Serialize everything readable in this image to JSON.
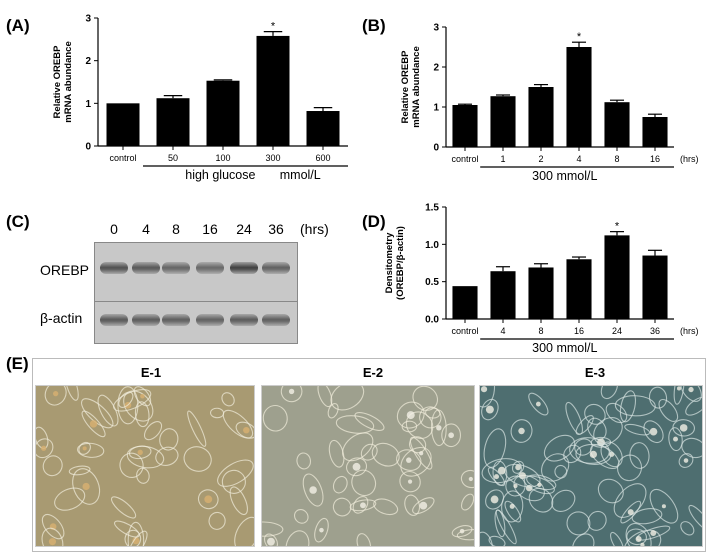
{
  "panels": {
    "A": "(A)",
    "B": "(B)",
    "C": "(C)",
    "D": "(D)",
    "E": "(E)"
  },
  "chart_data": [
    {
      "id": "A",
      "type": "bar",
      "categories": [
        "control",
        "50",
        "100",
        "300",
        "600"
      ],
      "values": [
        1.0,
        1.12,
        1.53,
        2.58,
        0.82
      ],
      "errors": [
        0.0,
        0.06,
        0.02,
        0.1,
        0.08
      ],
      "significant": [
        false,
        false,
        false,
        true,
        false
      ],
      "sig_mark": "*",
      "ylabel_line1": "Relative OREBP",
      "ylabel_line2": "mRNA abundance",
      "ylim": [
        0,
        3
      ],
      "yticks": [
        "0",
        "1",
        "2",
        "3"
      ],
      "group_label": "high glucose       mmol/L",
      "grid": false
    },
    {
      "id": "B",
      "type": "bar",
      "categories": [
        "control",
        "1",
        "2",
        "4",
        "8",
        "16"
      ],
      "values": [
        1.05,
        1.27,
        1.5,
        2.5,
        1.12,
        0.75
      ],
      "errors": [
        0.02,
        0.03,
        0.06,
        0.12,
        0.05,
        0.07
      ],
      "significant": [
        false,
        false,
        false,
        true,
        false,
        false
      ],
      "sig_mark": "*",
      "ylabel_line1": "Relative OREBP",
      "ylabel_line2": "mRNA abundance",
      "ylim": [
        0,
        3
      ],
      "yticks": [
        "0",
        "1",
        "2",
        "3"
      ],
      "unit": "(hrs)",
      "group_label": "300 mmol/L",
      "grid": false
    },
    {
      "id": "D",
      "type": "bar",
      "categories": [
        "control",
        "4",
        "8",
        "16",
        "24",
        "36"
      ],
      "values": [
        0.44,
        0.64,
        0.69,
        0.8,
        1.12,
        0.85
      ],
      "errors": [
        0.0,
        0.06,
        0.05,
        0.03,
        0.05,
        0.07
      ],
      "significant": [
        false,
        false,
        false,
        false,
        true,
        false
      ],
      "sig_mark": "*",
      "ylabel_line1": "Densitometry",
      "ylabel_line2": "(OREBP/β-actin)",
      "ylim": [
        0,
        1.5
      ],
      "yticks": [
        "0.0",
        "0.5",
        "1.0",
        "1.5"
      ],
      "unit": "(hrs)",
      "group_label": "300 mmol/L",
      "grid": false
    }
  ],
  "blot": {
    "lanes": [
      "0",
      "4",
      "8",
      "16",
      "24",
      "36"
    ],
    "unit": "(hrs)",
    "rows": [
      {
        "label": "OREBP",
        "intensity": [
          0.75,
          0.7,
          0.62,
          0.6,
          0.85,
          0.65
        ]
      },
      {
        "label": "β-actin",
        "intensity": [
          0.7,
          0.68,
          0.66,
          0.64,
          0.68,
          0.66
        ]
      }
    ]
  },
  "micrographs": {
    "titles": [
      "E-1",
      "E-2",
      "E-3"
    ],
    "tints": [
      "#a89a72",
      "#9ea08e",
      "#4e6e70"
    ]
  }
}
